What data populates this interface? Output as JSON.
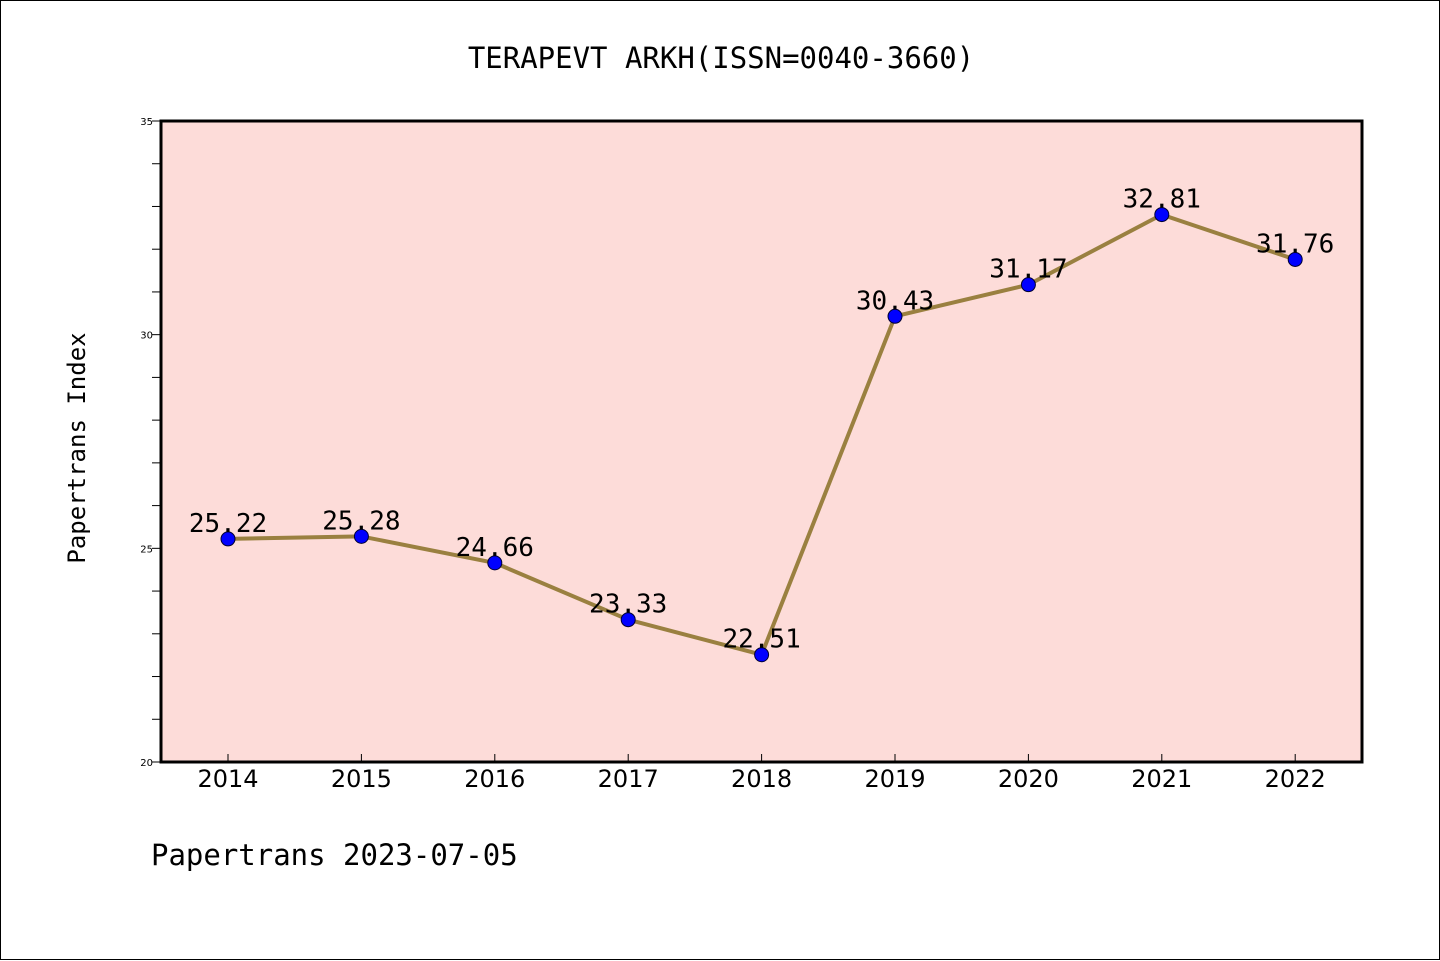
{
  "chart_data": {
    "type": "line",
    "title": "TERAPEVT ARKH(ISSN=0040-3660)",
    "xlabel": "",
    "ylabel": "Papertrans Index",
    "x": [
      "2014",
      "2015",
      "2016",
      "2017",
      "2018",
      "2019",
      "2020",
      "2021",
      "2022"
    ],
    "series": [
      {
        "values": [
          25.22,
          25.28,
          24.66,
          23.33,
          22.51,
          30.43,
          31.17,
          32.81,
          31.76
        ],
        "labels": [
          "25.22",
          "25.28",
          "24.66",
          "23.33",
          "22.51",
          "30.43",
          "31.17",
          "32.81",
          "31.76"
        ]
      }
    ],
    "ylim": [
      20,
      35
    ],
    "yticks": [
      20,
      25,
      30,
      35
    ],
    "ytick_labels": [
      "20",
      "25",
      "30",
      "35"
    ],
    "grid": false,
    "colors": {
      "plot_background": "#fddcd9",
      "line": "#9a8040",
      "marker": "#0000ff"
    }
  },
  "footer": "Papertrans 2023-07-05"
}
